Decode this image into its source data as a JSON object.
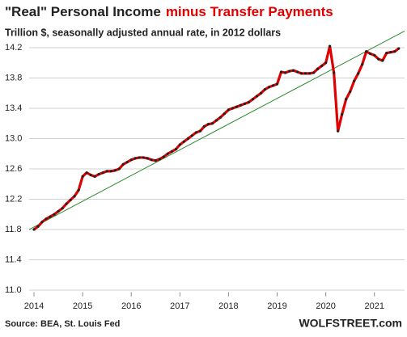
{
  "chart_data": {
    "type": "line",
    "title": "\"Real\" Personal Income",
    "title_highlight": "minus Transfer Payments",
    "title_highlight_color": "#e00000",
    "subtitle": "Trillion $, seasonally adjusted annual rate, in 2012 dollars",
    "source": "Source: BEA, St. Louis Fed",
    "watermark": "WOLFSTREET.com",
    "x": [
      2014.0,
      2014.083,
      2014.167,
      2014.25,
      2014.333,
      2014.417,
      2014.5,
      2014.583,
      2014.667,
      2014.75,
      2014.833,
      2014.917,
      2015.0,
      2015.083,
      2015.167,
      2015.25,
      2015.333,
      2015.417,
      2015.5,
      2015.583,
      2015.667,
      2015.75,
      2015.833,
      2015.917,
      2016.0,
      2016.083,
      2016.167,
      2016.25,
      2016.333,
      2016.417,
      2016.5,
      2016.583,
      2016.667,
      2016.75,
      2016.833,
      2016.917,
      2017.0,
      2017.083,
      2017.167,
      2017.25,
      2017.333,
      2017.417,
      2017.5,
      2017.583,
      2017.667,
      2017.75,
      2017.833,
      2017.917,
      2018.0,
      2018.083,
      2018.167,
      2018.25,
      2018.333,
      2018.417,
      2018.5,
      2018.583,
      2018.667,
      2018.75,
      2018.833,
      2018.917,
      2019.0,
      2019.083,
      2019.167,
      2019.25,
      2019.333,
      2019.417,
      2019.5,
      2019.583,
      2019.667,
      2019.75,
      2019.833,
      2019.917,
      2020.0,
      2020.083,
      2020.167,
      2020.25,
      2020.333,
      2020.417,
      2020.5,
      2020.583,
      2020.667,
      2020.75,
      2020.833,
      2020.917,
      2021.0,
      2021.083,
      2021.167,
      2021.25,
      2021.333,
      2021.417,
      2021.5
    ],
    "series": [
      {
        "color": "#e00000",
        "marker_color": "#222222",
        "values": [
          11.8,
          11.84,
          11.9,
          11.94,
          11.97,
          12.0,
          12.04,
          12.08,
          12.14,
          12.19,
          12.24,
          12.32,
          12.5,
          12.55,
          12.52,
          12.5,
          12.53,
          12.55,
          12.57,
          12.57,
          12.58,
          12.6,
          12.66,
          12.69,
          12.72,
          12.74,
          12.75,
          12.75,
          12.74,
          12.72,
          12.71,
          12.73,
          12.76,
          12.8,
          12.83,
          12.86,
          12.92,
          12.96,
          13.0,
          13.04,
          13.08,
          13.1,
          13.16,
          13.19,
          13.2,
          13.24,
          13.28,
          13.33,
          13.38,
          13.4,
          13.42,
          13.44,
          13.46,
          13.48,
          13.52,
          13.56,
          13.6,
          13.65,
          13.68,
          13.7,
          13.72,
          13.88,
          13.87,
          13.89,
          13.9,
          13.88,
          13.86,
          13.86,
          13.86,
          13.87,
          13.92,
          13.96,
          14.0,
          14.22,
          13.87,
          13.1,
          13.32,
          13.52,
          13.62,
          13.76,
          13.86,
          13.98,
          14.15,
          14.12,
          14.1,
          14.05,
          14.03,
          14.13,
          14.14,
          14.15,
          14.19
        ]
      }
    ],
    "trend_line": {
      "color": "#2e8b2e",
      "x": [
        2013.9,
        2021.62
      ],
      "values": [
        11.8,
        14.42
      ]
    },
    "xlim": [
      2013.9,
      2021.62
    ],
    "ylim": [
      10.95,
      14.45
    ],
    "xticks": [
      2014,
      2015,
      2016,
      2017,
      2018,
      2019,
      2020,
      2021
    ],
    "yticks": [
      {
        "value": 11,
        "label": "11.0"
      },
      11.4,
      11.8,
      12.2,
      12.6,
      {
        "value": 13,
        "label": "13.0"
      },
      13.4,
      13.8,
      14.2
    ],
    "grid": true
  }
}
